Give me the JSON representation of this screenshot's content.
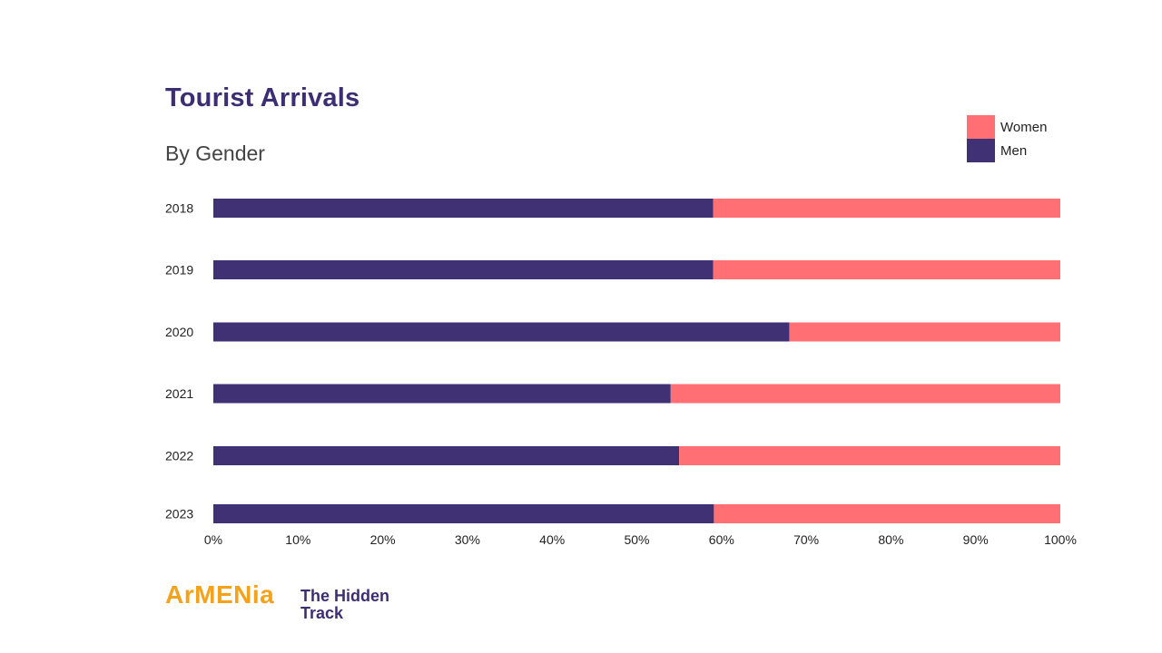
{
  "chart_data": {
    "type": "bar",
    "orientation": "horizontal",
    "stacked": true,
    "title": "Tourist Arrivals",
    "subtitle": "By Gender",
    "categories": [
      "2018",
      "2019",
      "2020",
      "2021",
      "2022",
      "2023"
    ],
    "series": [
      {
        "name": "Men",
        "color": "#3f3174",
        "values": [
          59,
          59,
          68,
          54,
          55,
          59.1
        ]
      },
      {
        "name": "Women",
        "color": "#ff6f73",
        "values": [
          41,
          41,
          32,
          46,
          45,
          40.9
        ]
      }
    ],
    "xlim": [
      0,
      100
    ],
    "xticks": [
      "0%",
      "10%",
      "20%",
      "30%",
      "40%",
      "50%",
      "60%",
      "70%",
      "80%",
      "90%",
      "100%"
    ],
    "legend": {
      "position": "top-right",
      "entries": [
        "Women",
        "Men"
      ]
    },
    "grid": false
  },
  "footer": {
    "brand": "ArMENia",
    "tagline_line1": "The Hidden",
    "tagline_line2": "Track"
  }
}
